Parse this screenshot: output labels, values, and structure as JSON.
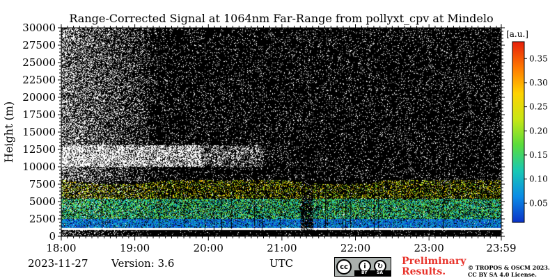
{
  "chart_data": {
    "type": "heatmap",
    "title": "Range-Corrected Signal at 1064nm Far-Range from pollyxt_cpv at Mindelo",
    "ylabel": "Height (m)",
    "xlabel": "UTC",
    "x_tick_labels": [
      "18:00",
      "19:00",
      "20:00",
      "21:00",
      "22:00",
      "23:00",
      "23:59"
    ],
    "x_tick_hours": [
      0,
      1,
      2,
      3,
      4,
      5,
      5.983
    ],
    "y_ticks": [
      0,
      2500,
      5000,
      7500,
      10000,
      12500,
      15000,
      17500,
      20000,
      22500,
      25000,
      27500,
      30000
    ],
    "ylim": [
      0,
      30000
    ],
    "colorbar": {
      "unit": "[a.u.]",
      "ticks": [
        0.05,
        0.1,
        0.15,
        0.2,
        0.25,
        0.3,
        0.35
      ],
      "tick_labels": [
        "0.05",
        "0.10",
        "0.15",
        "0.20",
        "0.25",
        "0.30",
        "0.35"
      ],
      "range": [
        0.01,
        0.385
      ],
      "colormap": [
        "#0a32c8",
        "#0a8ce6",
        "#18c8b4",
        "#5adc3c",
        "#c8e614",
        "#ffd200",
        "#ff7800",
        "#e61e0a"
      ]
    },
    "layers": [
      {
        "layer": "boundary layer",
        "height_range": [
          1000,
          2500
        ],
        "level": 0.1
      },
      {
        "layer": "mixed aerosol layer",
        "height_range": [
          2500,
          5500
        ],
        "level": 0.17
      },
      {
        "layer": "upper aerosol layer",
        "height_range": [
          5500,
          8000
        ],
        "level": 0.28
      },
      {
        "layer": "cloud layer",
        "height_range": [
          10000,
          13000
        ],
        "time_range": [
          "18:00",
          "20:45"
        ],
        "level": "saturated"
      }
    ],
    "grid": false,
    "legend": "colorbar right"
  },
  "footer": {
    "date": "2023-11-27",
    "version": "Version: 3.6",
    "preliminary_line1": "Preliminary",
    "preliminary_line2": "Results.",
    "copyright_line1": "© TROPOS & OSCM 2023.",
    "copyright_line2": "CC BY SA 4.0 License.",
    "license_logo_text": "cc",
    "license_by": "BY",
    "license_sa": "SA"
  }
}
